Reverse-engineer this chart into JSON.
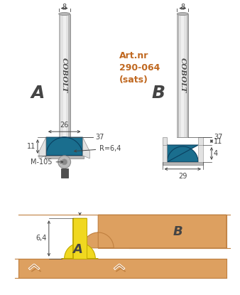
{
  "bg_color": "#ffffff",
  "blue_color": "#1a6e8e",
  "silver_light": "#e2e2e2",
  "silver_mid": "#b8b8b8",
  "silver_dark": "#909090",
  "silver_shank_hi": "#f0f0f0",
  "orange_wood": "#dda060",
  "orange_edge": "#c08040",
  "yellow_tenon": "#f0d820",
  "yellow_edge": "#c0a800",
  "text_color": "#333333",
  "art_color": "#c06820",
  "dim_color": "#444444",
  "cobolt_color": "#505050",
  "art_text": "Art.nr\n290-064\n(sats)",
  "label_A": "A",
  "label_B": "B",
  "cobolt_text": "COBOLT",
  "dim_8": "8",
  "dim_37": "37",
  "dim_26": "26",
  "dim_11": "11",
  "dim_R": "R=6,4",
  "dim_M105": "M-105",
  "dim_29": "29",
  "dim_4": "4",
  "dim_64": "6,4"
}
